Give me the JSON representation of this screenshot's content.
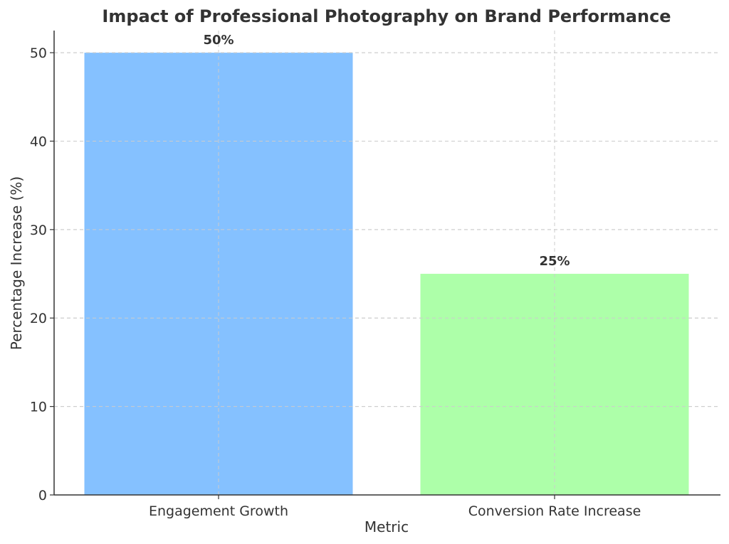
{
  "chart_data": {
    "type": "bar",
    "title": "Impact of Professional Photography on Brand Performance",
    "xlabel": "Metric",
    "ylabel": "Percentage Increase (%)",
    "categories": [
      "Engagement Growth",
      "Conversion Rate Increase"
    ],
    "values": [
      50,
      25
    ],
    "data_labels": [
      "50%",
      "25%"
    ],
    "colors": [
      "#85c1ff",
      "#adffa9"
    ],
    "ylim": [
      0,
      52.5
    ],
    "yticks": [
      0,
      10,
      20,
      30,
      40,
      50
    ],
    "grid": true
  }
}
